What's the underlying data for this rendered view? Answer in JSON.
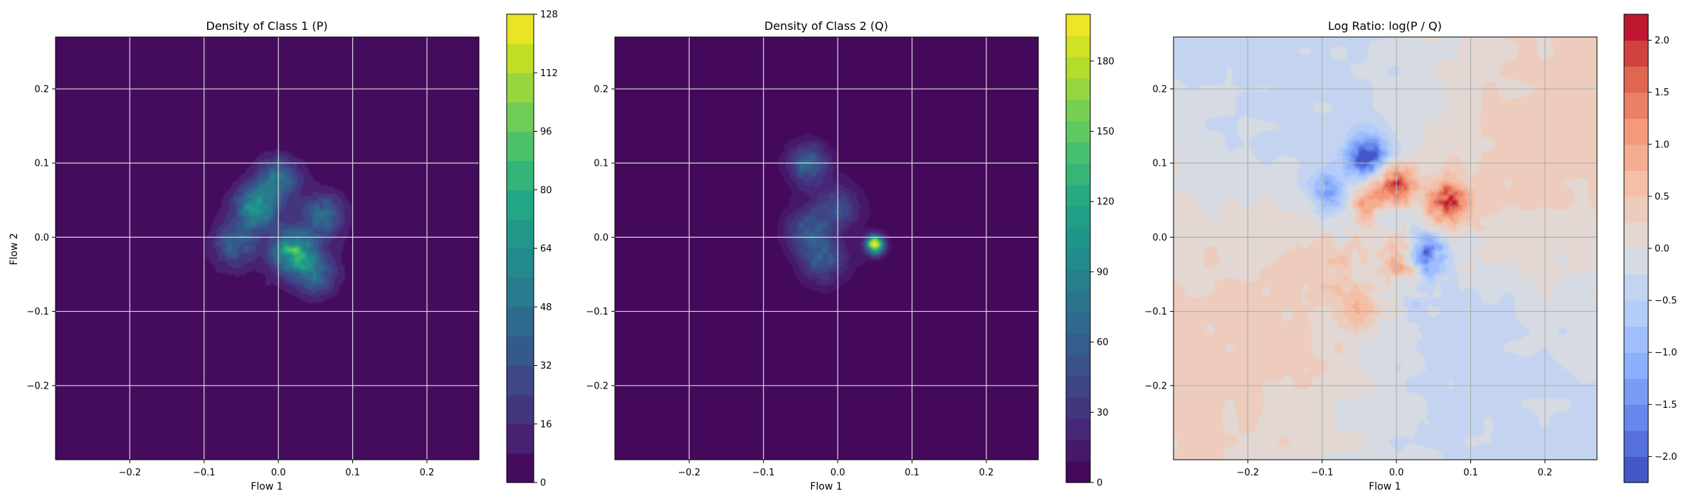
{
  "chart_data": [
    {
      "type": "heatmap",
      "title": "Density of Class 1 (P)",
      "xlabel": "Flow 1",
      "ylabel": "Flow 2",
      "xlim": [
        -0.3,
        0.27
      ],
      "ylim": [
        -0.3,
        0.27
      ],
      "xticks": [
        -0.2,
        -0.1,
        0.0,
        0.1,
        0.2
      ],
      "yticks": [
        -0.2,
        -0.1,
        0.0,
        0.1,
        0.2
      ],
      "grid": true,
      "colormap": "viridis",
      "colorbar": {
        "min": 0,
        "max": 128,
        "ticks": [
          0,
          16,
          32,
          48,
          64,
          80,
          96,
          112,
          128
        ]
      },
      "peaks": [
        {
          "x": 0.02,
          "y": -0.02,
          "value": 75
        },
        {
          "x": -0.03,
          "y": 0.04,
          "value": 60
        },
        {
          "x": 0.0,
          "y": 0.08,
          "value": 45
        },
        {
          "x": 0.06,
          "y": 0.03,
          "value": 40
        },
        {
          "x": -0.06,
          "y": -0.01,
          "value": 35
        },
        {
          "x": 0.05,
          "y": -0.05,
          "value": 35
        }
      ]
    },
    {
      "type": "heatmap",
      "title": "Density of Class 2 (Q)",
      "xlabel": "Flow 1",
      "ylabel": "",
      "xlim": [
        -0.3,
        0.27
      ],
      "ylim": [
        -0.3,
        0.27
      ],
      "xticks": [
        -0.2,
        -0.1,
        0.0,
        0.1,
        0.2
      ],
      "yticks": [
        -0.2,
        -0.1,
        0.0,
        0.1,
        0.2
      ],
      "grid": true,
      "colormap": "viridis",
      "colorbar": {
        "min": 0,
        "max": 200,
        "ticks": [
          0,
          30,
          60,
          90,
          120,
          150,
          180
        ]
      },
      "peaks": [
        {
          "x": 0.05,
          "y": -0.01,
          "value": 200
        },
        {
          "x": -0.04,
          "y": 0.1,
          "value": 60
        },
        {
          "x": -0.02,
          "y": -0.03,
          "value": 55
        },
        {
          "x": -0.04,
          "y": 0.01,
          "value": 45
        },
        {
          "x": 0.0,
          "y": 0.04,
          "value": 40
        }
      ]
    },
    {
      "type": "heatmap",
      "title": "Log Ratio: log(P / Q)",
      "xlabel": "Flow 1",
      "ylabel": "",
      "xlim": [
        -0.3,
        0.27
      ],
      "ylim": [
        -0.3,
        0.27
      ],
      "xticks": [
        -0.2,
        -0.1,
        0.0,
        0.1,
        0.2
      ],
      "yticks": [
        -0.2,
        -0.1,
        0.0,
        0.1,
        0.2
      ],
      "grid": true,
      "colormap": "coolwarm",
      "colorbar": {
        "min": -2.25,
        "max": 2.25,
        "ticks": [
          -2.0,
          -1.5,
          -1.0,
          -0.5,
          0.0,
          0.5,
          1.0,
          1.5,
          2.0
        ]
      },
      "features": [
        {
          "x": -0.04,
          "y": 0.11,
          "value": -2.0
        },
        {
          "x": 0.04,
          "y": -0.02,
          "value": -1.8
        },
        {
          "x": -0.09,
          "y": 0.06,
          "value": -1.0
        },
        {
          "x": 0.0,
          "y": 0.07,
          "value": 1.8
        },
        {
          "x": 0.07,
          "y": 0.05,
          "value": 1.5
        },
        {
          "x": -0.04,
          "y": 0.05,
          "value": 1.2
        },
        {
          "x": 0.01,
          "y": -0.03,
          "value": 1.1
        },
        {
          "x": -0.05,
          "y": -0.1,
          "value": 0.8
        }
      ]
    }
  ]
}
